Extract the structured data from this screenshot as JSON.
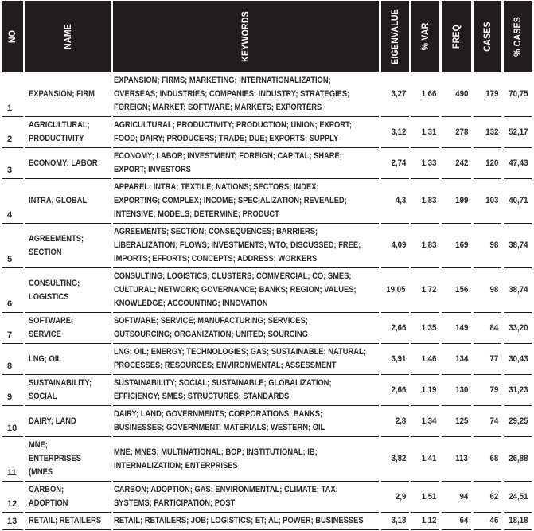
{
  "table": {
    "columns": [
      "NO",
      "NAME",
      "KEYWORDS",
      "EIGENVALUE",
      "% VAR",
      "FREQ",
      "CASES",
      "% CASES"
    ],
    "rows": [
      {
        "no": "1",
        "name": "EXPANSION; FIRM",
        "keywords": "EXPANSION; FIRMS; MARKETING; INTERNATIONALIZATION;\nOVERSEAS; INDUSTRIES; COMPANIES; INDUSTRY; STRATEGIES;\nFOREIGN; MARKET; SOFTWARE; MARKETS; EXPORTERS",
        "eigenvalue": "3,27",
        "pct_var": "1,66",
        "freq": "490",
        "cases": "179",
        "pct_cases": "70,75"
      },
      {
        "no": "2",
        "name": "AGRICULTURAL;\nPRODUCTIVITY",
        "keywords": "AGRICULTURAL; PRODUCTIVITY; PRODUCTION; UNION; EXPORT;\nFOOD; DAIRY; PRODUCERS; TRADE; DUE; EXPORTS; SUPPLY",
        "eigenvalue": "3,12",
        "pct_var": "1,31",
        "freq": "278",
        "cases": "132",
        "pct_cases": "52,17"
      },
      {
        "no": "3",
        "name": "ECONOMY; LABOR",
        "keywords": "ECONOMY; LABOR; INVESTMENT; FOREIGN; CAPITAL; SHARE;\nEXPORT; INVESTORS",
        "eigenvalue": "2,74",
        "pct_var": "1,33",
        "freq": "242",
        "cases": "120",
        "pct_cases": "47,43"
      },
      {
        "no": "4",
        "name": "INTRA, GLOBAL",
        "keywords": "APPAREL; INTRA; TEXTILE; NATIONS; SECTORS; INDEX;\nEXPORTING; COMPLEX; INCOME; SPECIALIZATION; REVEALED;\nINTENSIVE; MODELS; DETERMINE; PRODUCT",
        "eigenvalue": "4,3",
        "pct_var": "1,83",
        "freq": "199",
        "cases": "103",
        "pct_cases": "40,71"
      },
      {
        "no": "5",
        "name": "AGREEMENTS;\nSECTION",
        "keywords": "AGREEMENTS; SECTION; CONSEQUENCES; BARRIERS;\nLIBERALIZATION; FLOWS; INVESTMENTS; WTO; DISCUSSED; FREE;\nIMPORTS; EFFORTS; CONCEPTS; ADDRESS; WORKERS",
        "eigenvalue": "4,09",
        "pct_var": "1,83",
        "freq": "169",
        "cases": "98",
        "pct_cases": "38,74"
      },
      {
        "no": "6",
        "name": "CONSULTING;\nLOGISTICS",
        "keywords": "CONSULTING; LOGISTICS; CLUSTERS; COMMERCIAL; CO; SMES;\nCULTURAL; NETWORK; GOVERNANCE; BANKS; REGION; VALUES;\nKNOWLEDGE; ACCOUNTING; INNOVATION",
        "eigenvalue": "19,05",
        "pct_var": "1,72",
        "freq": "156",
        "cases": "98",
        "pct_cases": "38,74"
      },
      {
        "no": "7",
        "name": "SOFTWARE;\nSERVICE",
        "keywords": "SOFTWARE; SERVICE; MANUFACTURING; SERVICES;\nOUTSOURCING; ORGANIZATION; UNITED; SOURCING",
        "eigenvalue": "2,66",
        "pct_var": "1,35",
        "freq": "149",
        "cases": "84",
        "pct_cases": "33,20"
      },
      {
        "no": "8",
        "name": "LNG; OIL",
        "keywords": "LNG; OIL; ENERGY; TECHNOLOGIES; GAS; SUSTAINABLE; NATURAL;\nPROCESSES; RESOURCES; ENVIRONMENTAL; ASSESSMENT",
        "eigenvalue": "3,91",
        "pct_var": "1,46",
        "freq": "134",
        "cases": "77",
        "pct_cases": "30,43"
      },
      {
        "no": "9",
        "name": "SUSTAINABILITY;\nSOCIAL",
        "keywords": "SUSTAINABILITY; SOCIAL; SUSTAINABLE; GLOBALIZATION;\nEFFICIENCY; SMES; STRUCTURES; STANDARDS",
        "eigenvalue": "2,66",
        "pct_var": "1,19",
        "freq": "130",
        "cases": "79",
        "pct_cases": "31,23"
      },
      {
        "no": "10",
        "name": "DAIRY; LAND",
        "keywords": "DAIRY; LAND; GOVERNMENTS; CORPORATIONS; BANKS;\nBUSINESSES; GOVERNMENT; MATERIALS; WESTERN; OIL",
        "eigenvalue": "2,8",
        "pct_var": "1,34",
        "freq": "125",
        "cases": "74",
        "pct_cases": "29,25"
      },
      {
        "no": "11",
        "name": "MNE;\nENTERPRISES\n(MNES",
        "keywords": "MNE; MNES; MULTINATIONAL; BOP; INSTITUTIONAL; IB;\nINTERNALIZATION; ENTERPRISES",
        "eigenvalue": "3,82",
        "pct_var": "1,41",
        "freq": "113",
        "cases": "68",
        "pct_cases": "26,88"
      },
      {
        "no": "12",
        "name": "CARBON;\nADOPTION",
        "keywords": "CARBON; ADOPTION; GAS; ENVIRONMENTAL; CLIMATE; TAX;\nSYSTEMS; PARTICIPATION; POST",
        "eigenvalue": "2,9",
        "pct_var": "1,51",
        "freq": "94",
        "cases": "62",
        "pct_cases": "24,51"
      },
      {
        "no": "13",
        "name": "RETAIL; RETAILERS",
        "keywords": "RETAIL; RETAILERS; JOB; LOGISTICS; ET; AL; POWER; BUSINESSES",
        "eigenvalue": "3,18",
        "pct_var": "1,12",
        "freq": "64",
        "cases": "46",
        "pct_cases": "18,18"
      }
    ]
  },
  "colors": {
    "header_bg": "#211d1e",
    "text": "#2a2526",
    "line": "#1c1819",
    "page_bg": "#ffffff"
  }
}
